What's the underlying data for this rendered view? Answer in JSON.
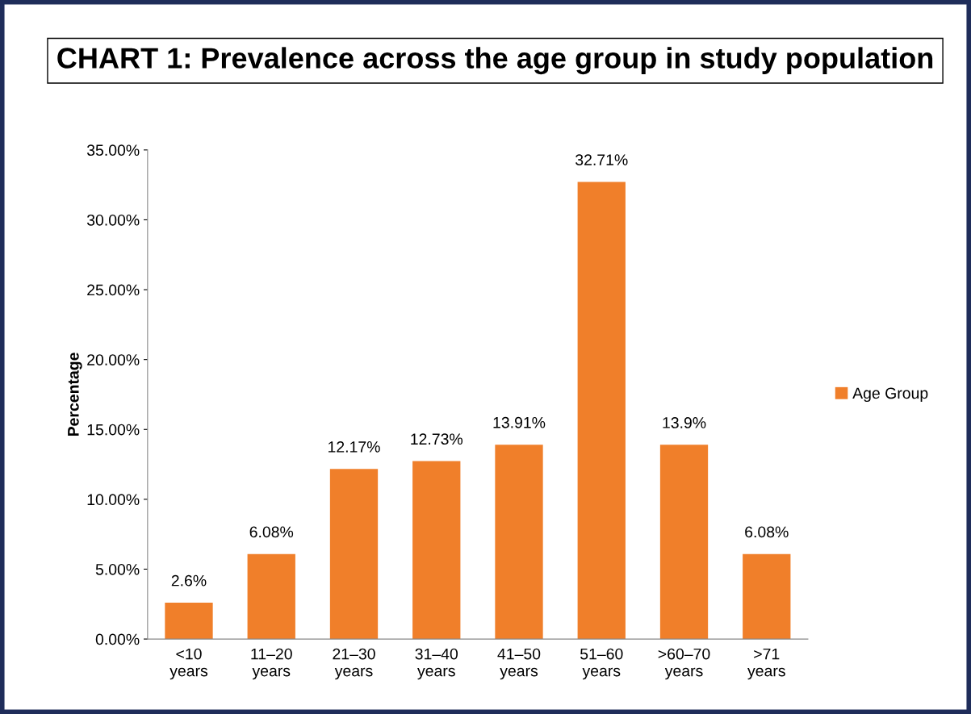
{
  "chart_data": {
    "type": "bar",
    "title": "CHART 1: Prevalence across the age group in study population",
    "ylabel": "Percentage",
    "categories": [
      "<10\nyears",
      "11–20\nyears",
      "21–30\nyears",
      "31–40\nyears",
      "41–50\nyears",
      "51–60\nyears",
      ">60–70\nyears",
      ">71\nyears"
    ],
    "series": [
      {
        "name": "Age Group",
        "color": "#f07f2a",
        "values": [
          2.6,
          6.08,
          12.17,
          12.73,
          13.91,
          32.71,
          13.9,
          6.08
        ],
        "value_labels": [
          "2.6%",
          "6.08%",
          "12.17%",
          "12.73%",
          "13.91%",
          "32.71%",
          "13.9%",
          "6.08%"
        ]
      }
    ],
    "ylim": [
      0,
      35
    ],
    "yticks": [
      {
        "value": 0,
        "label": "0.00%"
      },
      {
        "value": 5,
        "label": "5.00%"
      },
      {
        "value": 10,
        "label": "10.00%"
      },
      {
        "value": 15,
        "label": "15.00%"
      },
      {
        "value": 20,
        "label": "20.00%"
      },
      {
        "value": 25,
        "label": "25.00%"
      },
      {
        "value": 30,
        "label": "30.00%"
      },
      {
        "value": 35,
        "label": "35.00%"
      }
    ],
    "grid": false,
    "legend": "right"
  }
}
